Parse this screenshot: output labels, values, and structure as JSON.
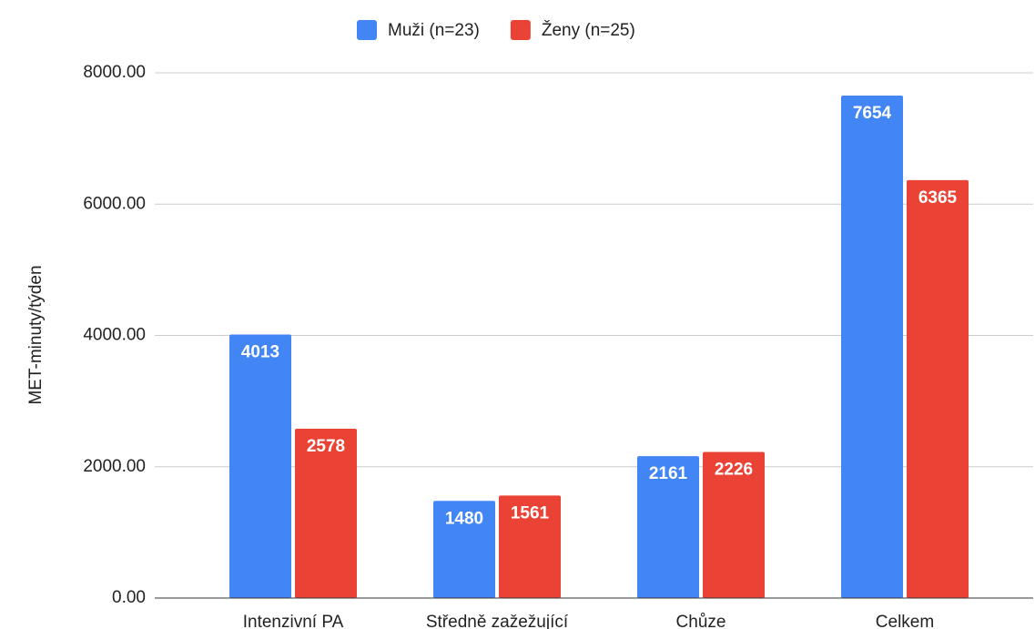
{
  "chart_data": {
    "type": "bar",
    "y_label": "MET-minuty/týden",
    "categories": [
      "Intenzivní PA",
      "Středně zažežující",
      "Chůze",
      "Celkem"
    ],
    "series": [
      {
        "name": "Muži (n=23)",
        "color": "#4285f4",
        "values": [
          4013,
          1480,
          2161,
          7654
        ]
      },
      {
        "name": "Ženy (n=25)",
        "color": "#ea4335",
        "values": [
          2578,
          1561,
          2226,
          6365
        ]
      }
    ],
    "ylim": [
      0,
      8000
    ],
    "yticks": [
      {
        "value": 0,
        "label": "0.00"
      },
      {
        "value": 2000,
        "label": "2000.00"
      },
      {
        "value": 4000,
        "label": "4000.00"
      },
      {
        "value": 6000,
        "label": "6000.00"
      },
      {
        "value": 8000,
        "label": "8000.00"
      }
    ],
    "grid": true,
    "legend": "top"
  }
}
